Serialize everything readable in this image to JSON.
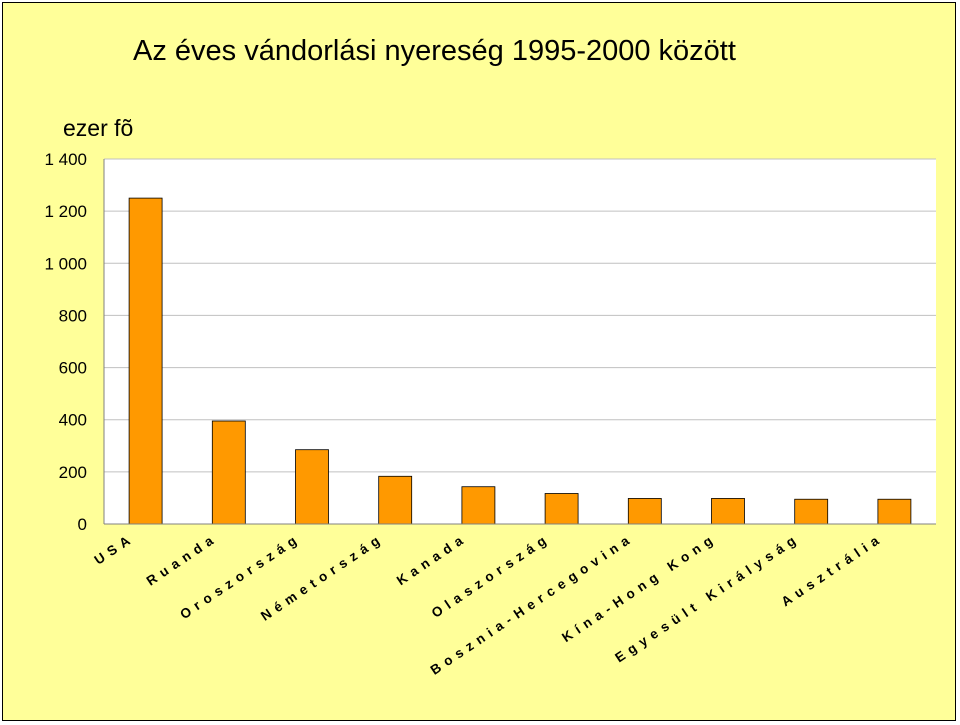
{
  "chart_data": {
    "type": "bar",
    "title": "Az éves vándorlási nyereség 1995-2000 között",
    "ylabel": "ezer fõ",
    "categories": [
      "USA",
      "Ruanda",
      "Oroszország",
      "Németország",
      "Kanada",
      "Olaszország",
      "Bosznia-Hercegovina",
      "Kína-Hong Kong",
      "Egyesült Királyság",
      "Ausztrália"
    ],
    "values": [
      1250,
      395,
      285,
      183,
      143,
      117,
      98,
      98,
      95,
      95
    ],
    "ylim": [
      0,
      1400
    ],
    "yticks": [
      0,
      200,
      400,
      600,
      800,
      1000,
      1200,
      1400
    ],
    "ytick_labels": [
      "0",
      "200",
      "400",
      "600",
      "800",
      "1 000",
      "1 200",
      "1 400"
    ],
    "grid": true,
    "legend": "none",
    "bar_color": "#ff9900",
    "background_color": "#ffff99",
    "plot_background": "#ffffff"
  }
}
